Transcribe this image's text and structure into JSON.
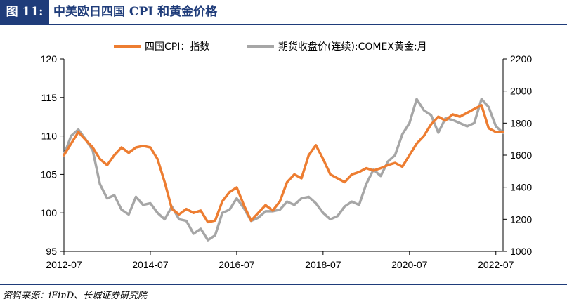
{
  "header": {
    "label": "图 11:",
    "title": "中美欧日四国 CPI 和黄金价格"
  },
  "source": "资料来源：iFinD、长城证券研究院",
  "chart_data": {
    "type": "line",
    "x": [
      "2012-07",
      "2012-09",
      "2012-11",
      "2013-01",
      "2013-03",
      "2013-05",
      "2013-07",
      "2013-09",
      "2013-11",
      "2014-01",
      "2014-03",
      "2014-05",
      "2014-07",
      "2014-09",
      "2014-11",
      "2015-01",
      "2015-03",
      "2015-05",
      "2015-07",
      "2015-09",
      "2015-11",
      "2016-01",
      "2016-03",
      "2016-05",
      "2016-07",
      "2016-09",
      "2016-11",
      "2017-01",
      "2017-03",
      "2017-05",
      "2017-07",
      "2017-09",
      "2017-11",
      "2018-01",
      "2018-03",
      "2018-05",
      "2018-07",
      "2018-09",
      "2018-11",
      "2019-01",
      "2019-03",
      "2019-05",
      "2019-07",
      "2019-09",
      "2019-11",
      "2020-01",
      "2020-03",
      "2020-05",
      "2020-07",
      "2020-09",
      "2020-11",
      "2021-01",
      "2021-03",
      "2021-05",
      "2021-07",
      "2021-09",
      "2021-11",
      "2022-01",
      "2022-03",
      "2022-05",
      "2022-07",
      "2022-08"
    ],
    "x_ticks": [
      "2012-07",
      "2014-07",
      "2016-07",
      "2018-07",
      "2020-07",
      "2022-07"
    ],
    "series": [
      {
        "name": "四国CPI：指数",
        "axis": "left",
        "color": "#ed7d31",
        "values": [
          107.5,
          109.0,
          110.5,
          109.5,
          108.5,
          107.0,
          106.2,
          107.5,
          108.5,
          107.8,
          108.5,
          108.7,
          108.5,
          107.0,
          104.0,
          100.5,
          99.8,
          100.5,
          100.0,
          100.3,
          98.8,
          99.0,
          101.5,
          102.7,
          103.3,
          101.0,
          99.0,
          100.0,
          101.0,
          100.3,
          101.5,
          104.0,
          105.0,
          104.5,
          107.5,
          108.8,
          107.0,
          105.0,
          104.5,
          104.0,
          105.0,
          105.3,
          105.8,
          105.5,
          105.8,
          106.2,
          106.5,
          106.0,
          107.5,
          109.0,
          110.0,
          111.5,
          112.5,
          112.0,
          112.8,
          112.5,
          113.0,
          113.5,
          114.0,
          111.0,
          110.5,
          110.5
        ]
      },
      {
        "name": "期货收盘价(连续):COMEX黄金:月",
        "axis": "right",
        "color": "#a6a6a6",
        "values": [
          1600,
          1720,
          1760,
          1700,
          1630,
          1420,
          1330,
          1350,
          1260,
          1230,
          1340,
          1290,
          1300,
          1240,
          1200,
          1280,
          1200,
          1190,
          1110,
          1140,
          1070,
          1100,
          1240,
          1260,
          1330,
          1270,
          1190,
          1210,
          1250,
          1250,
          1260,
          1310,
          1290,
          1330,
          1340,
          1300,
          1240,
          1200,
          1220,
          1280,
          1310,
          1290,
          1420,
          1510,
          1470,
          1560,
          1600,
          1730,
          1800,
          1950,
          1880,
          1850,
          1740,
          1830,
          1820,
          1800,
          1780,
          1800,
          1950,
          1900,
          1780,
          1740
        ]
      }
    ],
    "y_left": {
      "min": 95,
      "max": 120,
      "ticks": [
        95,
        100,
        105,
        110,
        115,
        120
      ]
    },
    "y_right": {
      "min": 1000,
      "max": 2200,
      "ticks": [
        1000,
        1200,
        1400,
        1600,
        1800,
        2000,
        2200
      ]
    },
    "grid": false,
    "legend_position": "top"
  }
}
